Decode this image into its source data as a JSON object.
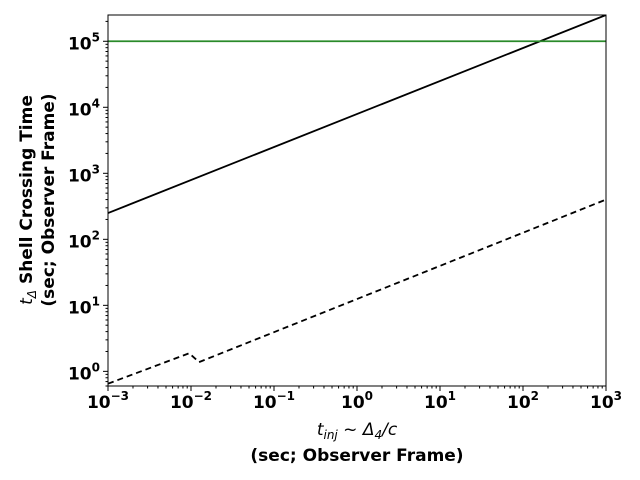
{
  "chart_data": {
    "type": "line",
    "x_scale": "log",
    "y_scale": "log",
    "xlim": [
      0.001,
      1000
    ],
    "ylim": [
      0.6,
      250000
    ],
    "x_ticks": [
      {
        "base": "10",
        "exp": "−3",
        "value": 0.001
      },
      {
        "base": "10",
        "exp": "−2",
        "value": 0.01
      },
      {
        "base": "10",
        "exp": "−1",
        "value": 0.1
      },
      {
        "base": "10",
        "exp": "0",
        "value": 1
      },
      {
        "base": "10",
        "exp": "1",
        "value": 10
      },
      {
        "base": "10",
        "exp": "2",
        "value": 100
      },
      {
        "base": "10",
        "exp": "3",
        "value": 1000
      }
    ],
    "y_ticks": [
      {
        "base": "10",
        "exp": "0",
        "value": 1
      },
      {
        "base": "10",
        "exp": "1",
        "value": 10
      },
      {
        "base": "10",
        "exp": "2",
        "value": 100
      },
      {
        "base": "10",
        "exp": "3",
        "value": 1000
      },
      {
        "base": "10",
        "exp": "4",
        "value": 10000
      },
      {
        "base": "10",
        "exp": "5",
        "value": 100000
      }
    ],
    "xlabel": {
      "t": "t",
      "t_sub": "inj",
      "sim": " ~ ",
      "delta": "Δ",
      "delta_sub": "4",
      "over_c": "/c",
      "line2": "(sec; Observer Frame)"
    },
    "ylabel": {
      "t": "t",
      "t_sub": "Δ",
      "rest": " Shell Crossing Time",
      "line2": "(sec; Observer Frame)"
    },
    "grid": false,
    "series": [
      {
        "style": "solid",
        "color": "#000000",
        "x": [
          0.001,
          1000
        ],
        "y": [
          250,
          250000
        ]
      },
      {
        "style": "dashed",
        "color": "#000000",
        "x": [
          0.001,
          0.0095,
          0.0125,
          1000
        ],
        "y": [
          0.65,
          1.88,
          1.38,
          400
        ]
      },
      {
        "style": "solid",
        "color": "#2a8a2a",
        "x": [
          0.001,
          1000
        ],
        "y": [
          100000,
          100000
        ]
      }
    ]
  }
}
